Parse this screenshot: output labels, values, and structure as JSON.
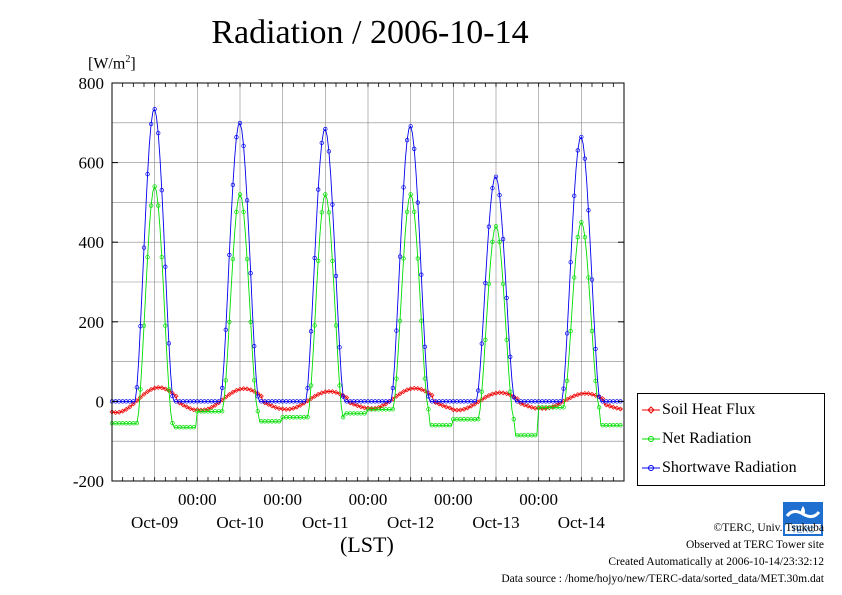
{
  "header": {
    "title": "Radiation / 2006-10-14",
    "unit_label": "[W/m²]",
    "x_unit_label": "(LST)"
  },
  "legend": {
    "items": [
      {
        "label": "Soil Heat Flux",
        "color": "#ee0000"
      },
      {
        "label": "Net Radiation",
        "color": "#00dd00"
      },
      {
        "label": "Shortwave Radiation",
        "color": "#0000ee"
      }
    ]
  },
  "footer": {
    "copyright": "©TERC, Univ. Tsukuba",
    "site": "Observed at TERC Tower site",
    "created": "Created Automatically at 2006-10-14/23:32:12",
    "source": "Data source : /home/hojyo/new/TERC-data/sorted_data/MET.30m.dat"
  },
  "logo": {
    "text": "TERC",
    "color": "#1e6fd0"
  },
  "chart_data": {
    "type": "line",
    "title": "Radiation / 2006-10-14",
    "ylabel": "[W/m²]",
    "xlabel": "(LST)",
    "ylim": [
      -200,
      800
    ],
    "yticks": [
      -200,
      0,
      200,
      400,
      600,
      800
    ],
    "xlim_days": [
      0,
      6
    ],
    "xticks": [
      {
        "day": 1,
        "label": "00:00"
      },
      {
        "day": 2,
        "label": "00:00"
      },
      {
        "day": 3,
        "label": "00:00"
      },
      {
        "day": 4,
        "label": "00:00"
      },
      {
        "day": 5,
        "label": "00:00"
      }
    ],
    "date_labels": [
      "Oct-09",
      "Oct-10",
      "Oct-11",
      "Oct-12",
      "Oct-13",
      "Oct-14"
    ],
    "grid": true,
    "legend_position": "right",
    "series": [
      {
        "name": "Soil Heat Flux",
        "color": "#ee0000",
        "marker": "diamond",
        "days": [
          {
            "min": -28,
            "peak": 35,
            "end": -18
          },
          {
            "min": -22,
            "peak": 32,
            "end": -18
          },
          {
            "min": -20,
            "peak": 25,
            "end": -15
          },
          {
            "min": -18,
            "peak": 33,
            "end": -20
          },
          {
            "min": -22,
            "peak": 22,
            "end": -15
          },
          {
            "min": -18,
            "peak": 20,
            "end": -25
          }
        ]
      },
      {
        "name": "Net Radiation",
        "color": "#00dd00",
        "marker": "circle",
        "days": [
          {
            "min": -55,
            "peak": 540,
            "end": -65
          },
          {
            "min": -25,
            "peak": 520,
            "end": -50
          },
          {
            "min": -40,
            "peak": 520,
            "end": -30
          },
          {
            "min": -20,
            "peak": 520,
            "end": -60
          },
          {
            "min": -45,
            "peak": 440,
            "end": -85
          },
          {
            "min": -15,
            "peak": 450,
            "end": -60
          }
        ]
      },
      {
        "name": "Shortwave Radiation",
        "color": "#0000ee",
        "marker": "circle",
        "days": [
          {
            "min": 0,
            "peak": 735,
            "end": 0
          },
          {
            "min": 0,
            "peak": 700,
            "end": 0
          },
          {
            "min": 0,
            "peak": 685,
            "end": 0
          },
          {
            "min": 0,
            "peak": 692,
            "end": 0
          },
          {
            "min": 0,
            "peak": 565,
            "end": 0
          },
          {
            "min": 0,
            "peak": 665,
            "end": 0
          }
        ]
      }
    ]
  }
}
